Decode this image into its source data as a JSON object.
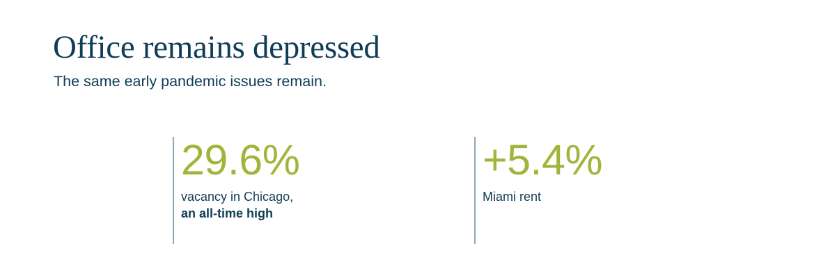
{
  "header": {
    "title": "Office remains depressed",
    "subtitle": "The same early pandemic issues remain."
  },
  "stats": [
    {
      "value": "29.6%",
      "label": "vacancy in Chicago,",
      "label_bold": "an all-time high"
    },
    {
      "value": "+5.4%",
      "label": "Miami rent"
    }
  ],
  "colors": {
    "title": "#0f3d56",
    "accent": "#a3b43a",
    "divider": "#8ea8b4",
    "background": "#ffffff"
  }
}
